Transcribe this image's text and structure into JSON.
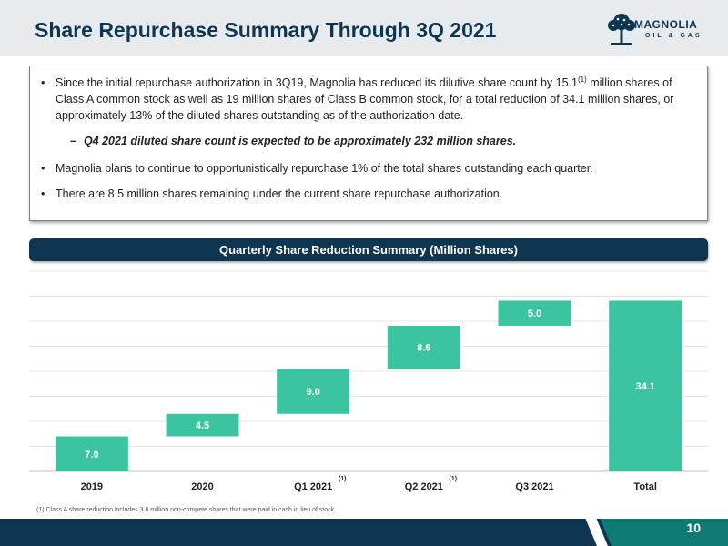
{
  "header": {
    "title": "Share Repurchase Summary Through 3Q 2021",
    "logo_word": "MAGNOLIA",
    "logo_sub": "OIL & GAS"
  },
  "summary": {
    "bullet1_a": "Since the initial repurchase authorization in 3Q19, Magnolia has reduced its dilutive share count by 15.1",
    "bullet1_sup": "(1)",
    "bullet1_b": " million shares of Class A common stock as well as 19 million shares of Class B common stock, for a total reduction of 34.1 million shares, or approximately 13% of the diluted shares outstanding as of the authorization date.",
    "sub_bullet": "Q4 2021 diluted share count is expected to be approximately 232 million shares.",
    "bullet2": "Magnolia plans to continue to opportunistically repurchase 1% of the total shares outstanding each quarter.",
    "bullet3": "There are 8.5 million shares remaining under the current share repurchase authorization."
  },
  "chart_data": {
    "type": "waterfall",
    "title": "Quarterly Share Reduction Summary (Million Shares)",
    "categories": [
      "2019",
      "2020",
      "Q1 2021",
      "Q2 2021",
      "Q3 2021",
      "Total"
    ],
    "category_notes": [
      "",
      "",
      "(1)",
      "(1)",
      "",
      ""
    ],
    "values": [
      7.0,
      4.5,
      9.0,
      8.6,
      5.0,
      34.1
    ],
    "labels": [
      "7.0",
      "4.5",
      "9.0",
      "8.6",
      "5.0",
      "34.1"
    ],
    "total_index": 5,
    "ylim": [
      0,
      40
    ],
    "grid": true,
    "bar_color": "#3cc4a0",
    "grid_color": "#e6e6e6"
  },
  "footer": {
    "footnote": "(1)  Class A share reduction includes 3.6 million non-compete shares that were paid in cash in lieu of stock.",
    "page_number": "10"
  },
  "colors": {
    "navy": "#0e3651",
    "teal": "#3cc4a0"
  }
}
